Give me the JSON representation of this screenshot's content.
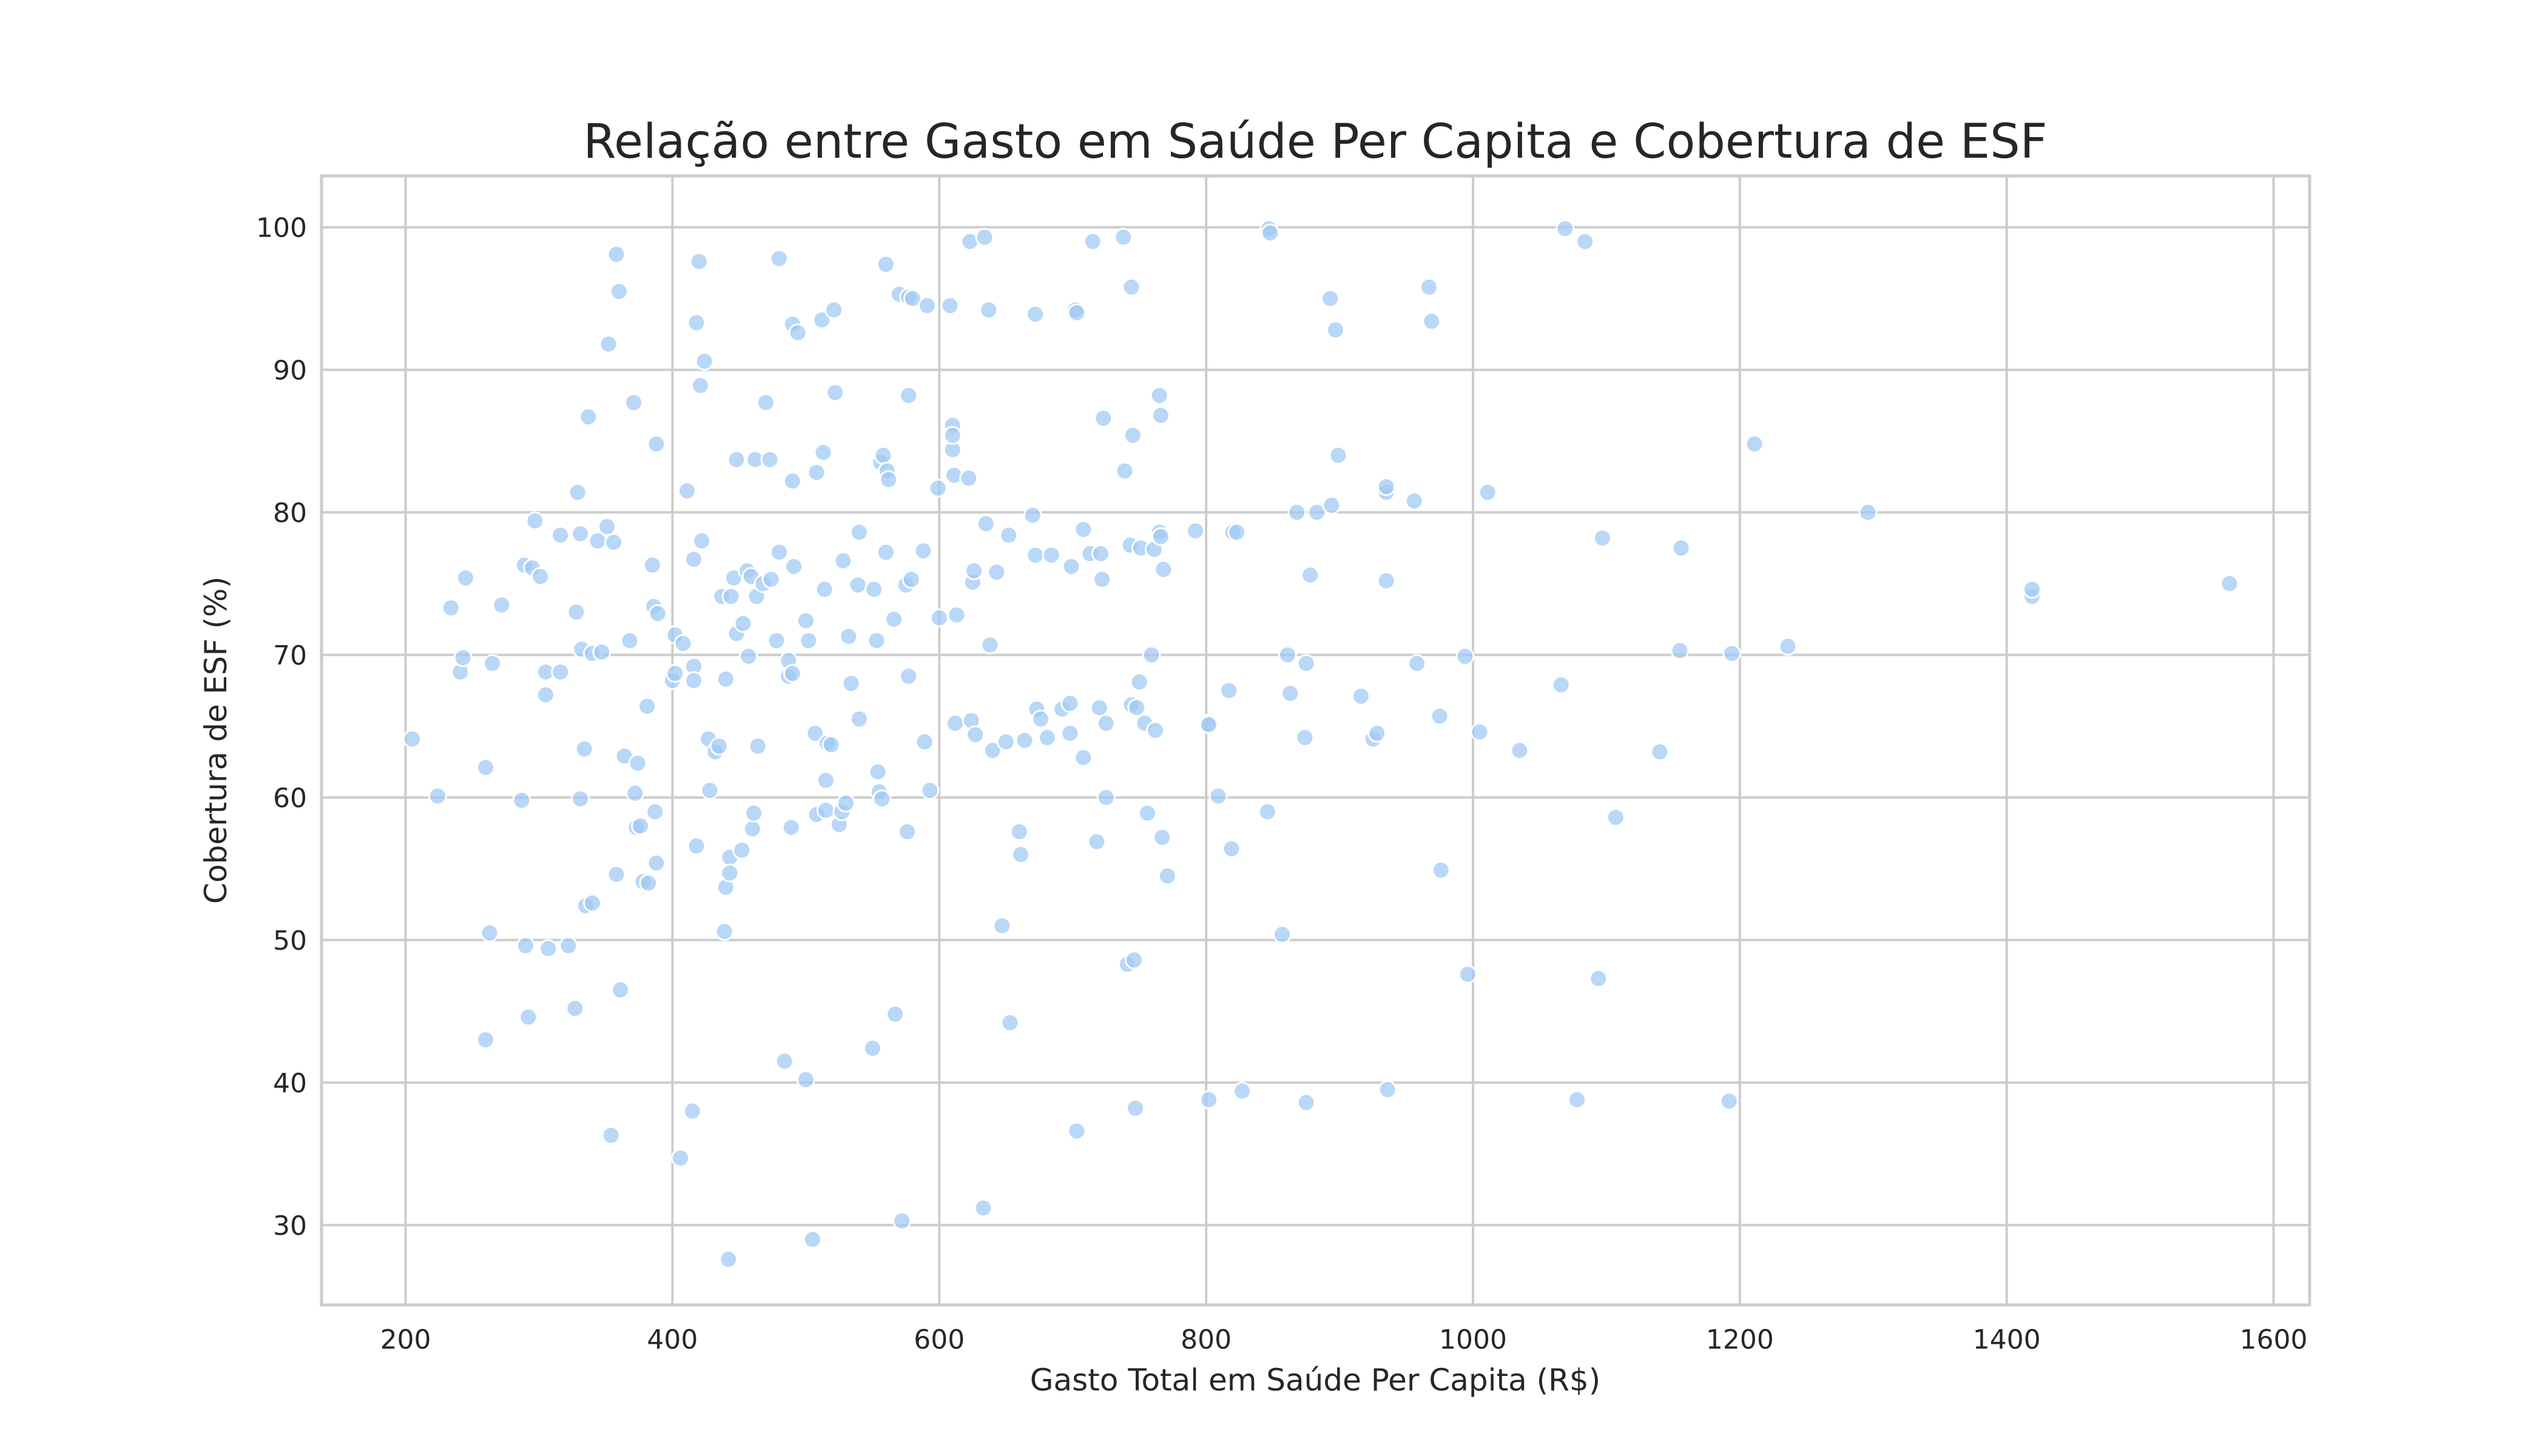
{
  "chart_data": {
    "type": "scatter",
    "title": "Relação entre Gasto em Saúde Per Capita e Cobertura de ESF",
    "xlabel": "Gasto Total em Saúde Per Capita (R$)",
    "ylabel": "Cobertura de ESF (%)",
    "xlim": [
      137,
      1627
    ],
    "ylim": [
      24.4,
      103.6
    ],
    "xticks": [
      200,
      400,
      600,
      800,
      1000,
      1200,
      1400,
      1600
    ],
    "yticks": [
      30,
      40,
      50,
      60,
      70,
      80,
      90,
      100
    ],
    "grid": true,
    "legend": "none",
    "point_color": "#a1c9f4",
    "point_opacity": 0.75,
    "points": [
      [
        205,
        64.1
      ],
      [
        224,
        60.1
      ],
      [
        234,
        73.3
      ],
      [
        241,
        68.8
      ],
      [
        243,
        69.8
      ],
      [
        245,
        75.4
      ],
      [
        260,
        62.1
      ],
      [
        260,
        43.0
      ],
      [
        263,
        50.5
      ],
      [
        265,
        69.4
      ],
      [
        272,
        73.5
      ],
      [
        287,
        59.8
      ],
      [
        289,
        76.3
      ],
      [
        290,
        49.6
      ],
      [
        292,
        44.6
      ],
      [
        295,
        76.1
      ],
      [
        297,
        79.4
      ],
      [
        301,
        75.5
      ],
      [
        305,
        68.8
      ],
      [
        305,
        67.2
      ],
      [
        307,
        49.4
      ],
      [
        316,
        68.8
      ],
      [
        316,
        78.4
      ],
      [
        322,
        49.6
      ],
      [
        327,
        45.2
      ],
      [
        328,
        73.0
      ],
      [
        329,
        81.4
      ],
      [
        331,
        59.9
      ],
      [
        331,
        78.5
      ],
      [
        332,
        70.4
      ],
      [
        334,
        63.4
      ],
      [
        335,
        52.4
      ],
      [
        337,
        86.7
      ],
      [
        340,
        52.6
      ],
      [
        340,
        70.1
      ],
      [
        344,
        78.0
      ],
      [
        347,
        70.2
      ],
      [
        351,
        79.0
      ],
      [
        352,
        91.8
      ],
      [
        354,
        36.3
      ],
      [
        356,
        77.9
      ],
      [
        358,
        54.6
      ],
      [
        358,
        98.1
      ],
      [
        360,
        95.5
      ],
      [
        361,
        46.5
      ],
      [
        364,
        62.9
      ],
      [
        368,
        71.0
      ],
      [
        371,
        87.7
      ],
      [
        372,
        60.3
      ],
      [
        373,
        57.9
      ],
      [
        374,
        62.4
      ],
      [
        376,
        58.0
      ],
      [
        378,
        54.1
      ],
      [
        381,
        66.4
      ],
      [
        382,
        54.0
      ],
      [
        385,
        76.3
      ],
      [
        386,
        73.4
      ],
      [
        387,
        59.0
      ],
      [
        388,
        55.4
      ],
      [
        388,
        84.8
      ],
      [
        389,
        72.9
      ],
      [
        400,
        68.2
      ],
      [
        402,
        68.7
      ],
      [
        402,
        71.4
      ],
      [
        406,
        34.7
      ],
      [
        408,
        70.8
      ],
      [
        411,
        81.5
      ],
      [
        415,
        38.0
      ],
      [
        416,
        76.7
      ],
      [
        416,
        69.2
      ],
      [
        416,
        68.2
      ],
      [
        418,
        93.3
      ],
      [
        418,
        56.6
      ],
      [
        420,
        97.6
      ],
      [
        421,
        88.9
      ],
      [
        422,
        78.0
      ],
      [
        424,
        90.6
      ],
      [
        427,
        64.1
      ],
      [
        428,
        60.5
      ],
      [
        432,
        63.2
      ],
      [
        435,
        63.6
      ],
      [
        437,
        74.1
      ],
      [
        439,
        50.6
      ],
      [
        440,
        53.7
      ],
      [
        440,
        68.3
      ],
      [
        442,
        27.6
      ],
      [
        443,
        55.8
      ],
      [
        443,
        54.7
      ],
      [
        444,
        74.1
      ],
      [
        446,
        75.4
      ],
      [
        448,
        83.7
      ],
      [
        448,
        71.5
      ],
      [
        452,
        56.3
      ],
      [
        453,
        72.2
      ],
      [
        456,
        75.9
      ],
      [
        457,
        69.9
      ],
      [
        459,
        75.5
      ],
      [
        460,
        57.8
      ],
      [
        461,
        58.9
      ],
      [
        462,
        83.7
      ],
      [
        463,
        74.1
      ],
      [
        464,
        63.6
      ],
      [
        468,
        75.0
      ],
      [
        470,
        87.7
      ],
      [
        473,
        83.7
      ],
      [
        474,
        75.3
      ],
      [
        478,
        71.0
      ],
      [
        480,
        77.2
      ],
      [
        480,
        97.8
      ],
      [
        484,
        41.5
      ],
      [
        487,
        69.6
      ],
      [
        487,
        68.5
      ],
      [
        489,
        57.9
      ],
      [
        490,
        68.7
      ],
      [
        490,
        93.2
      ],
      [
        490,
        82.2
      ],
      [
        491,
        76.2
      ],
      [
        494,
        92.6
      ],
      [
        500,
        40.2
      ],
      [
        500,
        72.4
      ],
      [
        502,
        71.0
      ],
      [
        505,
        29.0
      ],
      [
        507,
        64.5
      ],
      [
        508,
        82.8
      ],
      [
        508,
        58.8
      ],
      [
        512,
        93.5
      ],
      [
        513,
        84.2
      ],
      [
        514,
        74.6
      ],
      [
        515,
        61.2
      ],
      [
        515,
        59.1
      ],
      [
        516,
        63.8
      ],
      [
        519,
        63.7
      ],
      [
        521,
        94.2
      ],
      [
        522,
        88.4
      ],
      [
        525,
        58.1
      ],
      [
        527,
        59.0
      ],
      [
        528,
        76.6
      ],
      [
        530,
        59.6
      ],
      [
        532,
        71.3
      ],
      [
        534,
        68.0
      ],
      [
        539,
        74.9
      ],
      [
        540,
        65.5
      ],
      [
        540,
        78.6
      ],
      [
        550,
        42.4
      ],
      [
        551,
        74.6
      ],
      [
        553,
        71.0
      ],
      [
        554,
        61.8
      ],
      [
        555,
        60.4
      ],
      [
        556,
        83.5
      ],
      [
        557,
        59.9
      ],
      [
        558,
        84.0
      ],
      [
        560,
        97.4
      ],
      [
        560,
        77.2
      ],
      [
        561,
        82.9
      ],
      [
        562,
        82.3
      ],
      [
        566,
        72.5
      ],
      [
        567,
        44.8
      ],
      [
        570,
        95.3
      ],
      [
        572,
        30.3
      ],
      [
        575,
        74.9
      ],
      [
        576,
        57.6
      ],
      [
        577,
        88.2
      ],
      [
        577,
        68.5
      ],
      [
        577,
        95.1
      ],
      [
        579,
        75.3
      ],
      [
        580,
        95.0
      ],
      [
        588,
        77.3
      ],
      [
        589,
        63.9
      ],
      [
        591,
        94.5
      ],
      [
        593,
        60.5
      ],
      [
        599,
        81.7
      ],
      [
        600,
        72.6
      ],
      [
        608,
        94.5
      ],
      [
        610,
        84.4
      ],
      [
        610,
        86.1
      ],
      [
        610,
        85.4
      ],
      [
        611,
        82.6
      ],
      [
        612,
        65.2
      ],
      [
        613,
        72.8
      ],
      [
        622,
        82.4
      ],
      [
        623,
        99.0
      ],
      [
        624,
        65.4
      ],
      [
        625,
        75.1
      ],
      [
        626,
        75.9
      ],
      [
        627,
        64.4
      ],
      [
        633,
        31.2
      ],
      [
        634,
        99.3
      ],
      [
        635,
        79.2
      ],
      [
        637,
        94.2
      ],
      [
        638,
        70.7
      ],
      [
        640,
        63.3
      ],
      [
        643,
        75.8
      ],
      [
        647,
        51.0
      ],
      [
        650,
        63.9
      ],
      [
        652,
        78.4
      ],
      [
        653,
        44.2
      ],
      [
        660,
        57.6
      ],
      [
        661,
        56.0
      ],
      [
        664,
        64.0
      ],
      [
        670,
        79.8
      ],
      [
        672,
        93.9
      ],
      [
        672,
        77.0
      ],
      [
        673,
        66.2
      ],
      [
        676,
        65.5
      ],
      [
        681,
        64.2
      ],
      [
        684,
        77.0
      ],
      [
        692,
        66.2
      ],
      [
        698,
        66.6
      ],
      [
        698,
        64.5
      ],
      [
        699,
        76.2
      ],
      [
        702,
        94.2
      ],
      [
        703,
        94.0
      ],
      [
        703,
        36.6
      ],
      [
        708,
        62.8
      ],
      [
        708,
        78.8
      ],
      [
        713,
        77.1
      ],
      [
        715,
        99.0
      ],
      [
        718,
        56.9
      ],
      [
        720,
        66.3
      ],
      [
        721,
        77.1
      ],
      [
        722,
        75.3
      ],
      [
        723,
        86.6
      ],
      [
        725,
        65.2
      ],
      [
        725,
        60.0
      ],
      [
        738,
        99.3
      ],
      [
        739,
        82.9
      ],
      [
        741,
        48.3
      ],
      [
        743,
        77.7
      ],
      [
        744,
        66.5
      ],
      [
        744,
        95.8
      ],
      [
        745,
        85.4
      ],
      [
        746,
        48.6
      ],
      [
        747,
        38.2
      ],
      [
        748,
        66.3
      ],
      [
        750,
        68.1
      ],
      [
        751,
        77.5
      ],
      [
        754,
        65.2
      ],
      [
        756,
        58.9
      ],
      [
        759,
        70.0
      ],
      [
        761,
        77.4
      ],
      [
        762,
        64.7
      ],
      [
        765,
        88.2
      ],
      [
        765,
        78.6
      ],
      [
        766,
        86.8
      ],
      [
        766,
        78.3
      ],
      [
        767,
        57.2
      ],
      [
        768,
        76.0
      ],
      [
        771,
        54.5
      ],
      [
        792,
        78.7
      ],
      [
        801,
        65.2
      ],
      [
        802,
        65.1
      ],
      [
        802,
        38.8
      ],
      [
        809,
        60.1
      ],
      [
        817,
        67.5
      ],
      [
        819,
        56.4
      ],
      [
        820,
        78.6
      ],
      [
        823,
        78.6
      ],
      [
        827,
        39.4
      ],
      [
        846,
        59.0
      ],
      [
        847,
        99.9
      ],
      [
        848,
        99.6
      ],
      [
        857,
        50.4
      ],
      [
        861,
        70.0
      ],
      [
        863,
        67.3
      ],
      [
        868,
        80.0
      ],
      [
        874,
        64.2
      ],
      [
        875,
        38.6
      ],
      [
        875,
        69.4
      ],
      [
        878,
        75.6
      ],
      [
        883,
        80.0
      ],
      [
        893,
        95.0
      ],
      [
        894,
        80.5
      ],
      [
        897,
        92.8
      ],
      [
        899,
        84.0
      ],
      [
        916,
        67.1
      ],
      [
        925,
        64.1
      ],
      [
        928,
        64.5
      ],
      [
        935,
        81.4
      ],
      [
        935,
        81.8
      ],
      [
        935,
        75.2
      ],
      [
        936,
        39.5
      ],
      [
        956,
        80.8
      ],
      [
        958,
        69.4
      ],
      [
        967,
        95.8
      ],
      [
        969,
        93.4
      ],
      [
        975,
        65.7
      ],
      [
        976,
        54.9
      ],
      [
        994,
        69.9
      ],
      [
        996,
        47.6
      ],
      [
        1005,
        64.6
      ],
      [
        1011,
        81.4
      ],
      [
        1035,
        63.3
      ],
      [
        1066,
        67.9
      ],
      [
        1069,
        99.9
      ],
      [
        1078,
        38.8
      ],
      [
        1084,
        99.0
      ],
      [
        1094,
        47.3
      ],
      [
        1097,
        78.2
      ],
      [
        1107,
        58.6
      ],
      [
        1140,
        63.2
      ],
      [
        1155,
        70.3
      ],
      [
        1156,
        77.5
      ],
      [
        1192,
        38.7
      ],
      [
        1194,
        70.1
      ],
      [
        1211,
        84.8
      ],
      [
        1236,
        70.6
      ],
      [
        1296,
        80.0
      ],
      [
        1419,
        74.1
      ],
      [
        1419,
        74.6
      ],
      [
        1567,
        75.0
      ]
    ]
  }
}
